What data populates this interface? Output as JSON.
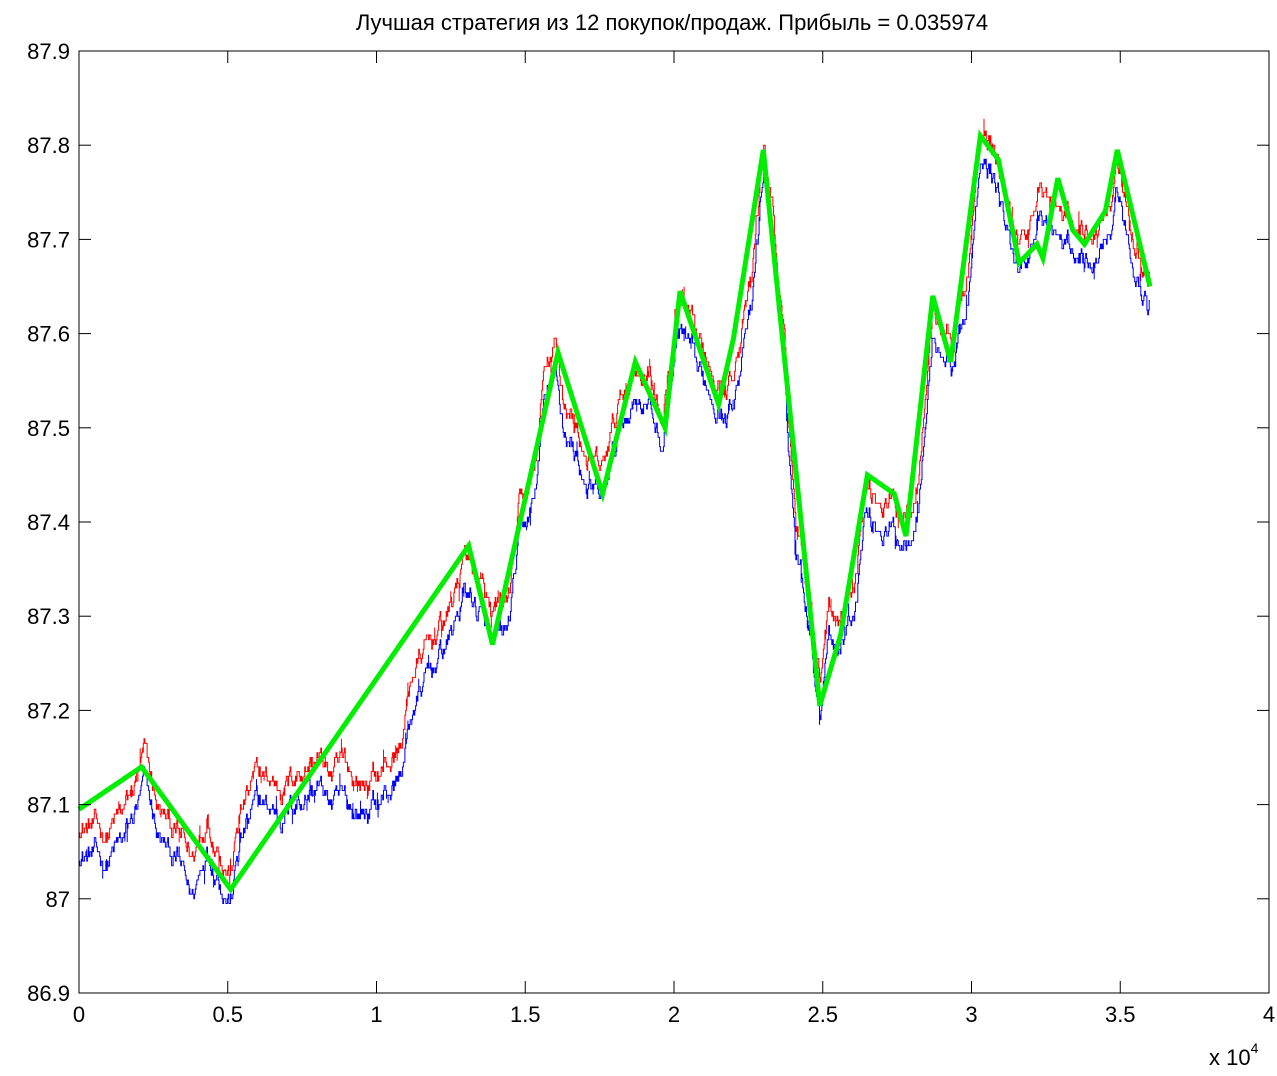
{
  "chart_data": {
    "type": "line",
    "title": "Лучшая стратегия из 12 покупок/продаж. Прибыль = 0.035974",
    "xlabel": "",
    "ylabel": "",
    "xlim": [
      0,
      40000
    ],
    "ylim": [
      86.9,
      87.9
    ],
    "x_ticks": [
      0,
      5000,
      10000,
      15000,
      20000,
      25000,
      30000,
      35000,
      40000
    ],
    "x_tick_labels": [
      "0",
      "0.5",
      "1",
      "1.5",
      "2",
      "2.5",
      "3",
      "3.5",
      "4"
    ],
    "x_exponent_label": "x 10",
    "x_exponent_power": "4",
    "y_ticks": [
      86.9,
      87.0,
      87.1,
      87.2,
      87.3,
      87.4,
      87.5,
      87.6,
      87.7,
      87.8,
      87.9
    ],
    "y_tick_labels": [
      "86.9",
      "87",
      "87.1",
      "87.2",
      "87.3",
      "87.4",
      "87.5",
      "87.6",
      "87.7",
      "87.8",
      "87.9"
    ],
    "grid": false,
    "series": [
      {
        "color": "#ff0000",
        "style": "noisy-price",
        "offset": 0.015,
        "points": [
          [
            0,
            87.08
          ],
          [
            900,
            87.07
          ],
          [
            1500,
            87.09
          ],
          [
            2000,
            87.13
          ],
          [
            2200,
            87.15
          ],
          [
            2700,
            87.09
          ],
          [
            3300,
            87.07
          ],
          [
            3800,
            87.04
          ],
          [
            4300,
            87.09
          ],
          [
            4700,
            87.06
          ],
          [
            5100,
            87.03
          ],
          [
            5400,
            87.09
          ],
          [
            6000,
            87.13
          ],
          [
            6800,
            87.12
          ],
          [
            7500,
            87.14
          ],
          [
            8000,
            87.15
          ],
          [
            8500,
            87.13
          ],
          [
            9000,
            87.14
          ],
          [
            9500,
            87.12
          ],
          [
            10300,
            87.14
          ],
          [
            10800,
            87.16
          ],
          [
            11200,
            87.24
          ],
          [
            11800,
            87.27
          ],
          [
            12500,
            87.31
          ],
          [
            13000,
            87.37
          ],
          [
            13500,
            87.33
          ],
          [
            13900,
            87.29
          ],
          [
            14400,
            87.31
          ],
          [
            14800,
            87.41
          ],
          [
            15300,
            87.45
          ],
          [
            15600,
            87.55
          ],
          [
            16000,
            87.58
          ],
          [
            16300,
            87.53
          ],
          [
            16700,
            87.5
          ],
          [
            17200,
            87.46
          ],
          [
            17600,
            87.45
          ],
          [
            17800,
            87.48
          ],
          [
            18200,
            87.53
          ],
          [
            18500,
            87.55
          ],
          [
            18800,
            87.57
          ],
          [
            19200,
            87.55
          ],
          [
            19600,
            87.51
          ],
          [
            20000,
            87.6
          ],
          [
            20200,
            87.63
          ],
          [
            20800,
            87.58
          ],
          [
            21300,
            87.57
          ],
          [
            21800,
            87.54
          ],
          [
            22200,
            87.6
          ],
          [
            22600,
            87.65
          ],
          [
            23000,
            87.8
          ],
          [
            23300,
            87.74
          ],
          [
            23700,
            87.58
          ],
          [
            24100,
            87.4
          ],
          [
            24500,
            87.34
          ],
          [
            24900,
            87.24
          ],
          [
            25200,
            87.33
          ],
          [
            25500,
            87.3
          ],
          [
            25800,
            87.32
          ],
          [
            26100,
            87.35
          ],
          [
            26400,
            87.44
          ],
          [
            26800,
            87.43
          ],
          [
            27300,
            87.42
          ],
          [
            27700,
            87.41
          ],
          [
            28200,
            87.45
          ],
          [
            28700,
            87.63
          ],
          [
            29100,
            87.6
          ],
          [
            29400,
            87.6
          ],
          [
            29800,
            87.65
          ],
          [
            30300,
            87.8
          ],
          [
            30600,
            87.8
          ],
          [
            30900,
            87.78
          ],
          [
            31300,
            87.72
          ],
          [
            31800,
            87.7
          ],
          [
            32300,
            87.76
          ],
          [
            32800,
            87.73
          ],
          [
            33200,
            87.72
          ],
          [
            33700,
            87.71
          ],
          [
            34200,
            87.72
          ],
          [
            34700,
            87.75
          ],
          [
            34900,
            87.79
          ],
          [
            35300,
            87.71
          ],
          [
            35700,
            87.68
          ],
          [
            36000,
            87.66
          ]
        ]
      },
      {
        "color": "#0000ff",
        "style": "noisy-price",
        "offset": -0.015,
        "points": [
          [
            0,
            87.05
          ],
          [
            900,
            87.04
          ],
          [
            1500,
            87.06
          ],
          [
            2000,
            87.1
          ],
          [
            2200,
            87.12
          ],
          [
            2700,
            87.06
          ],
          [
            3300,
            87.04
          ],
          [
            3800,
            87.0
          ],
          [
            4300,
            87.06
          ],
          [
            4700,
            87.03
          ],
          [
            5100,
            87.0
          ],
          [
            5400,
            87.06
          ],
          [
            6000,
            87.1
          ],
          [
            6800,
            87.09
          ],
          [
            7500,
            87.11
          ],
          [
            8000,
            87.12
          ],
          [
            8500,
            87.1
          ],
          [
            9000,
            87.1
          ],
          [
            9500,
            87.09
          ],
          [
            10300,
            87.11
          ],
          [
            10800,
            87.13
          ],
          [
            11200,
            87.2
          ],
          [
            11800,
            87.24
          ],
          [
            12500,
            87.28
          ],
          [
            13000,
            87.33
          ],
          [
            13500,
            87.3
          ],
          [
            13900,
            87.26
          ],
          [
            14400,
            87.28
          ],
          [
            14800,
            87.38
          ],
          [
            15300,
            87.42
          ],
          [
            15600,
            87.52
          ],
          [
            16000,
            87.55
          ],
          [
            16300,
            87.5
          ],
          [
            16700,
            87.47
          ],
          [
            17200,
            87.43
          ],
          [
            17600,
            87.42
          ],
          [
            17800,
            87.45
          ],
          [
            18200,
            87.5
          ],
          [
            18500,
            87.52
          ],
          [
            18800,
            87.54
          ],
          [
            19200,
            87.52
          ],
          [
            19600,
            87.48
          ],
          [
            20000,
            87.57
          ],
          [
            20200,
            87.6
          ],
          [
            20800,
            87.55
          ],
          [
            21300,
            87.54
          ],
          [
            21800,
            87.51
          ],
          [
            22200,
            87.57
          ],
          [
            22600,
            87.62
          ],
          [
            23000,
            87.77
          ],
          [
            23300,
            87.71
          ],
          [
            23700,
            87.55
          ],
          [
            24100,
            87.37
          ],
          [
            24500,
            87.31
          ],
          [
            24900,
            87.2
          ],
          [
            25200,
            87.3
          ],
          [
            25500,
            87.27
          ],
          [
            25800,
            87.29
          ],
          [
            26100,
            87.32
          ],
          [
            26400,
            87.41
          ],
          [
            26800,
            87.4
          ],
          [
            27300,
            87.39
          ],
          [
            27700,
            87.38
          ],
          [
            28200,
            87.42
          ],
          [
            28700,
            87.6
          ],
          [
            29100,
            87.57
          ],
          [
            29400,
            87.57
          ],
          [
            29800,
            87.62
          ],
          [
            30300,
            87.77
          ],
          [
            30600,
            87.77
          ],
          [
            30900,
            87.75
          ],
          [
            31300,
            87.69
          ],
          [
            31800,
            87.67
          ],
          [
            32300,
            87.73
          ],
          [
            32800,
            87.7
          ],
          [
            33200,
            87.69
          ],
          [
            33700,
            87.68
          ],
          [
            34200,
            87.69
          ],
          [
            34700,
            87.72
          ],
          [
            34900,
            87.76
          ],
          [
            35300,
            87.68
          ],
          [
            35700,
            87.65
          ],
          [
            36000,
            87.63
          ]
        ]
      },
      {
        "color": "#00ee00",
        "style": "strategy",
        "points": [
          [
            0,
            87.095
          ],
          [
            2100,
            87.14
          ],
          [
            5100,
            87.01
          ],
          [
            13100,
            87.375
          ],
          [
            13900,
            87.27
          ],
          [
            16100,
            87.58
          ],
          [
            17600,
            87.43
          ],
          [
            18700,
            87.57
          ],
          [
            19700,
            87.5
          ],
          [
            20200,
            87.645
          ],
          [
            21500,
            87.525
          ],
          [
            22000,
            87.595
          ],
          [
            23000,
            87.795
          ],
          [
            24900,
            87.205
          ],
          [
            25600,
            87.28
          ],
          [
            26500,
            87.45
          ],
          [
            27400,
            87.43
          ],
          [
            27800,
            87.385
          ],
          [
            28700,
            87.64
          ],
          [
            29300,
            87.57
          ],
          [
            30300,
            87.81
          ],
          [
            30900,
            87.785
          ],
          [
            31600,
            87.675
          ],
          [
            32200,
            87.695
          ],
          [
            32400,
            87.68
          ],
          [
            32900,
            87.765
          ],
          [
            33400,
            87.71
          ],
          [
            33800,
            87.695
          ],
          [
            34500,
            87.73
          ],
          [
            34900,
            87.795
          ],
          [
            36000,
            87.65
          ]
        ]
      }
    ]
  }
}
